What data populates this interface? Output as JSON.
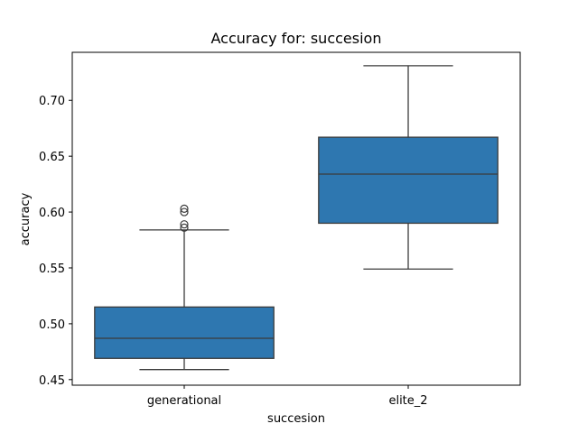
{
  "chart_data": {
    "type": "box",
    "title": "Accuracy for: succesion",
    "xlabel": "succesion",
    "ylabel": "accuracy",
    "ylim": [
      0.445,
      0.743
    ],
    "yticks": [
      0.45,
      0.5,
      0.55,
      0.6,
      0.65,
      0.7
    ],
    "ytick_labels": [
      "0.45",
      "0.50",
      "0.55",
      "0.60",
      "0.65",
      "0.70"
    ],
    "categories": [
      "generational",
      "elite_2"
    ],
    "box_color": "#2e77b0",
    "line_color": "#3b3b3b",
    "boxes": [
      {
        "category": "generational",
        "whisker_low": 0.459,
        "q1": 0.469,
        "median": 0.487,
        "q3": 0.515,
        "whisker_high": 0.584,
        "outliers": [
          0.586,
          0.589,
          0.6,
          0.603
        ]
      },
      {
        "category": "elite_2",
        "whisker_low": 0.549,
        "q1": 0.59,
        "median": 0.634,
        "q3": 0.667,
        "whisker_high": 0.731,
        "outliers": []
      }
    ],
    "grid": false,
    "legend": false
  }
}
